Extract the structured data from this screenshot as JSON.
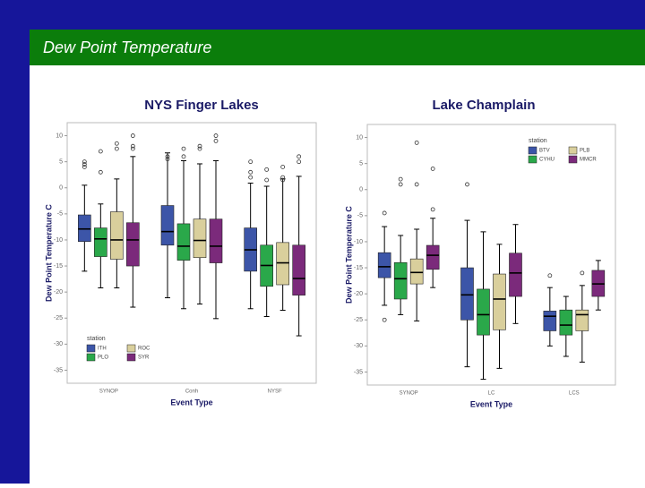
{
  "header": {
    "title": "Dew Point Temperature"
  },
  "chart_data": [
    {
      "type": "box",
      "title": "NYS Finger Lakes",
      "y_label": "Dew Point Temperature C",
      "x_label": "Event Type",
      "categories": [
        "SYNOP",
        "Conh",
        "NYSF"
      ],
      "ylim": [
        -37.5,
        12.5
      ],
      "yticks": [
        10,
        5,
        0,
        -5,
        -10,
        -15,
        -20,
        -25,
        -30,
        -35
      ],
      "legend_title": "station",
      "legend": "lower left",
      "series": [
        {
          "name": "ITH",
          "color": "#3c55a8",
          "values": [
            {
              "min": -16.0,
              "q1": -10.3,
              "median": -7.9,
              "q3": -5.2,
              "max": 0.5,
              "outliers": [
                5,
                4.5,
                4
              ]
            },
            {
              "min": -21.1,
              "q1": -11.0,
              "median": -8.4,
              "q3": -3.4,
              "max": 6.7,
              "outliers": [
                6,
                5.5
              ]
            },
            {
              "min": -23.2,
              "q1": -16.0,
              "median": -11.9,
              "q3": -7.7,
              "max": 0.9,
              "outliers": [
                5,
                3,
                2
              ]
            }
          ]
        },
        {
          "name": "PLO",
          "color": "#2aa84a",
          "values": [
            {
              "min": -19.2,
              "q1": -13.2,
              "median": -9.8,
              "q3": -7.7,
              "max": -3.1,
              "outliers": [
                7,
                3
              ]
            },
            {
              "min": -23.2,
              "q1": -13.9,
              "median": -11.2,
              "q3": -6.9,
              "max": 5.2,
              "outliers": [
                7.5,
                6
              ]
            },
            {
              "min": -24.7,
              "q1": -18.9,
              "median": -14.9,
              "q3": -11.0,
              "max": 0.3,
              "outliers": [
                3.5,
                1.5
              ]
            }
          ]
        },
        {
          "name": "ROC",
          "color": "#d9cf9c",
          "values": [
            {
              "min": -19.2,
              "q1": -13.7,
              "median": -10.0,
              "q3": -4.6,
              "max": 1.7,
              "outliers": [
                8.5,
                7.5
              ]
            },
            {
              "min": -22.3,
              "q1": -13.4,
              "median": -10.1,
              "q3": -6.0,
              "max": 4.6,
              "outliers": [
                8,
                7.5
              ]
            },
            {
              "min": -23.5,
              "q1": -18.6,
              "median": -14.4,
              "q3": -10.5,
              "max": 1.7,
              "outliers": [
                4,
                2,
                1.5
              ]
            }
          ]
        },
        {
          "name": "SYR",
          "color": "#7b2a7b",
          "values": [
            {
              "min": -22.9,
              "q1": -15.0,
              "median": -10.0,
              "q3": -6.7,
              "max": 6.0,
              "outliers": [
                10,
                8,
                7.5
              ]
            },
            {
              "min": -25.1,
              "q1": -14.4,
              "median": -11.2,
              "q3": -6.0,
              "max": 5.2,
              "outliers": [
                10,
                9
              ]
            },
            {
              "min": -28.4,
              "q1": -20.6,
              "median": -17.4,
              "q3": -11.0,
              "max": 2.2,
              "outliers": [
                6,
                5
              ]
            }
          ]
        }
      ]
    },
    {
      "type": "box",
      "title": "Lake Champlain",
      "y_label": "Dew Point Temperature C",
      "x_label": "Event Type",
      "categories": [
        "SYNOP",
        "LC",
        "LCS"
      ],
      "ylim": [
        -37.5,
        12.5
      ],
      "yticks": [
        10,
        5,
        0,
        -5,
        -10,
        -15,
        -20,
        -25,
        -30,
        -35
      ],
      "legend_title": "station",
      "legend": "upper right",
      "series": [
        {
          "name": "BTV",
          "color": "#3c55a8",
          "values": [
            {
              "min": -22.2,
              "q1": -16.9,
              "median": -14.8,
              "q3": -12.1,
              "max": -7.1,
              "outliers": [
                -4.5,
                -25
              ]
            },
            {
              "min": -34.0,
              "q1": -25.0,
              "median": -20.2,
              "q3": -15.0,
              "max": -5.9,
              "outliers": [
                1
              ]
            },
            {
              "min": -30.0,
              "q1": -27.1,
              "median": -24.3,
              "q3": -23.3,
              "max": -18.8,
              "outliers": [
                -16.5
              ]
            }
          ]
        },
        {
          "name": "CYHU",
          "color": "#2aa84a",
          "values": [
            {
              "min": -24.0,
              "q1": -21.0,
              "median": -17.1,
              "q3": -14.0,
              "max": -8.8,
              "outliers": [
                2,
                1
              ]
            },
            {
              "min": -36.4,
              "q1": -27.9,
              "median": -24.0,
              "q3": -19.1,
              "max": -8.1,
              "outliers": []
            },
            {
              "min": -32.0,
              "q1": -27.9,
              "median": -26.0,
              "q3": -23.1,
              "max": -20.5,
              "outliers": []
            }
          ]
        },
        {
          "name": "PLB",
          "color": "#d9cf9c",
          "values": [
            {
              "min": -25.2,
              "q1": -18.1,
              "median": -15.9,
              "q3": -13.3,
              "max": -7.6,
              "outliers": [
                9,
                1
              ]
            },
            {
              "min": -34.3,
              "q1": -26.9,
              "median": -21.0,
              "q3": -16.2,
              "max": -10.5,
              "outliers": []
            },
            {
              "min": -33.1,
              "q1": -27.1,
              "median": -24.0,
              "q3": -23.1,
              "max": -18.4,
              "outliers": [
                -16
              ]
            }
          ]
        },
        {
          "name": "MMCR",
          "color": "#7b2a7b",
          "values": [
            {
              "min": -18.8,
              "q1": -15.3,
              "median": -12.6,
              "q3": -10.7,
              "max": -5.5,
              "outliers": [
                4,
                -3.8
              ]
            },
            {
              "min": -25.7,
              "q1": -20.5,
              "median": -16.0,
              "q3": -12.2,
              "max": -6.7,
              "outliers": []
            },
            {
              "min": -23.1,
              "q1": -20.5,
              "median": -18.1,
              "q3": -15.5,
              "max": -13.6,
              "outliers": []
            }
          ]
        }
      ]
    }
  ]
}
